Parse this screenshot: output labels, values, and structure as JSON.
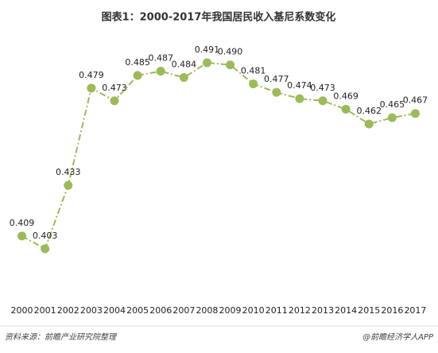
{
  "chart_data": {
    "type": "line",
    "title": "图表1：2000-2017年我国居民收入基尼系数变化",
    "categories": [
      "2000",
      "2001",
      "2002",
      "2003",
      "2004",
      "2005",
      "2006",
      "2007",
      "2008",
      "2009",
      "2010",
      "2011",
      "2012",
      "2013",
      "2014",
      "2015",
      "2016",
      "2017"
    ],
    "values": [
      0.409,
      0.403,
      0.433,
      0.479,
      0.473,
      0.485,
      0.487,
      0.484,
      0.491,
      0.49,
      0.481,
      0.477,
      0.474,
      0.473,
      0.469,
      0.462,
      0.465,
      0.467
    ],
    "value_labels": [
      "0.409",
      "0.403",
      "0.433",
      "0.479",
      "0.473",
      "0.485",
      "0.487",
      "0.484",
      "0.491",
      "0.490",
      "0.481",
      "0.477",
      "0.474",
      "0.473",
      "0.469",
      "0.462",
      "0.465",
      "0.467"
    ],
    "color": "#9bbb59",
    "ylim": [
      0.38,
      0.5
    ],
    "source": "资料来源：前瞻产业研究院整理",
    "credit": "@前瞻经济学人APP"
  }
}
